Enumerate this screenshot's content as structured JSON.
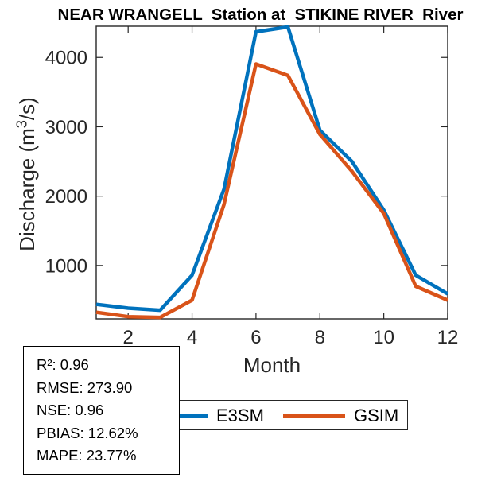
{
  "header": {
    "title": "NEAR WRANGELL  Station at  STIKINE RIVER  River"
  },
  "axes": {
    "xlabel": "Month",
    "ylabel_prefix": "Discharge (m",
    "ylabel_sup": "3",
    "ylabel_suffix": "/s)",
    "axis_color": "#262626"
  },
  "legend": {
    "items": [
      {
        "label": "E3SM",
        "color": "#0072BD"
      },
      {
        "label": "GSIM",
        "color": "#D95319"
      }
    ]
  },
  "stats_box": {
    "lines": [
      "R²: 0.96",
      "RMSE: 273.90",
      "NSE: 0.96",
      "PBIAS: 12.62%",
      "MAPE: 23.77%"
    ]
  },
  "chart_data": {
    "type": "line",
    "title": "NEAR WRANGELL  Station at  STIKINE RIVER  River",
    "xlabel": "Month",
    "ylabel": "Discharge (m^3/s)",
    "x": [
      1,
      2,
      3,
      4,
      5,
      6,
      7,
      8,
      9,
      10,
      11,
      12
    ],
    "series": [
      {
        "name": "E3SM",
        "color": "#0072BD",
        "values": [
          440,
          385,
          355,
          860,
          2100,
          4370,
          4440,
          2950,
          2500,
          1800,
          860,
          590
        ]
      },
      {
        "name": "GSIM",
        "color": "#D95319",
        "values": [
          325,
          262,
          252,
          500,
          1880,
          3905,
          3740,
          2890,
          2360,
          1750,
          700,
          500
        ]
      }
    ],
    "xlim": [
      1,
      12
    ],
    "ylim": [
      230,
      4450
    ],
    "xticks": [
      2,
      4,
      6,
      8,
      10,
      12
    ],
    "yticks": [
      1000,
      2000,
      3000,
      4000
    ],
    "grid": false,
    "legend_position": "below-plot",
    "line_width": 4.5
  }
}
